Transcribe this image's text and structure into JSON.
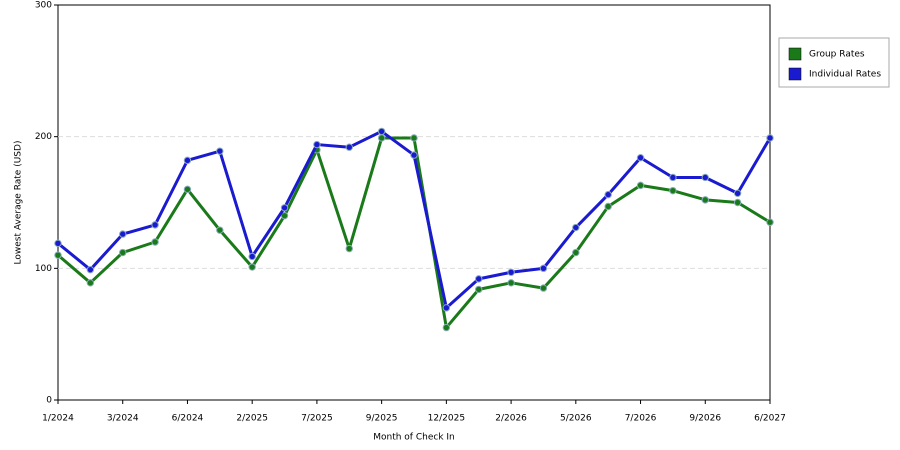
{
  "chart_data": {
    "type": "line",
    "x_label": "Month of Check In",
    "y_label": "Lowest Average Rate (USD)",
    "categories": [
      "1/2024",
      null,
      "3/2024",
      null,
      "6/2024",
      null,
      "2/2025",
      null,
      "7/2025",
      null,
      "9/2025",
      null,
      "12/2025",
      null,
      "2/2026",
      null,
      "5/2026",
      null,
      "7/2026",
      null,
      "9/2026",
      null,
      "6/2027"
    ],
    "series": [
      {
        "name": "Group Rates",
        "color": "#1a7a1a",
        "values": [
          110,
          89,
          112,
          120,
          160,
          129,
          101,
          140,
          190,
          115,
          199,
          199,
          55,
          84,
          89,
          85,
          112,
          147,
          163,
          159,
          152,
          150,
          135
        ]
      },
      {
        "name": "Individual Rates",
        "color": "#1a1ad0",
        "values": [
          119,
          99,
          126,
          133,
          182,
          189,
          109,
          146,
          194,
          192,
          204,
          186,
          70,
          92,
          97,
          100,
          131,
          156,
          184,
          169,
          169,
          157,
          199
        ]
      }
    ],
    "ylim": [
      0,
      300
    ],
    "yticks": [
      0,
      100,
      200,
      300
    ],
    "grid": true,
    "legend": "right"
  }
}
